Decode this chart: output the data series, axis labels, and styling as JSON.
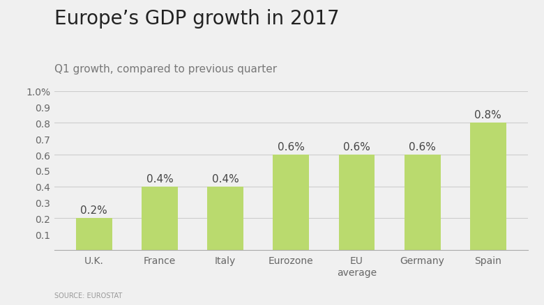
{
  "title": "Europe’s GDP growth in 2017",
  "subtitle": "Q1 growth, compared to previous quarter",
  "source": "SOURCE: EUROSTAT",
  "categories": [
    "U.K.",
    "France",
    "Italy",
    "Eurozone",
    "EU\naverage",
    "Germany",
    "Spain"
  ],
  "values": [
    0.2,
    0.4,
    0.4,
    0.6,
    0.6,
    0.6,
    0.8
  ],
  "labels": [
    "0.2%",
    "0.4%",
    "0.4%",
    "0.6%",
    "0.6%",
    "0.6%",
    "0.8%"
  ],
  "bar_color": "#bada6e",
  "background_color": "#f0f0f0",
  "ylim": [
    0,
    1.0
  ],
  "yticks": [
    0.1,
    0.2,
    0.3,
    0.4,
    0.5,
    0.6,
    0.7,
    0.8,
    0.9,
    1.0
  ],
  "ytick_labels": [
    "0.1",
    "0.2",
    "0.3",
    "0.4",
    "0.5",
    "0.6",
    "0.7",
    "0.8",
    "0.9",
    "1.0%"
  ],
  "grid_ticks": [
    0.2,
    0.4,
    0.6,
    0.8,
    1.0
  ],
  "title_fontsize": 20,
  "subtitle_fontsize": 11,
  "label_fontsize": 11,
  "tick_fontsize": 10,
  "source_fontsize": 7,
  "bar_width": 0.55
}
